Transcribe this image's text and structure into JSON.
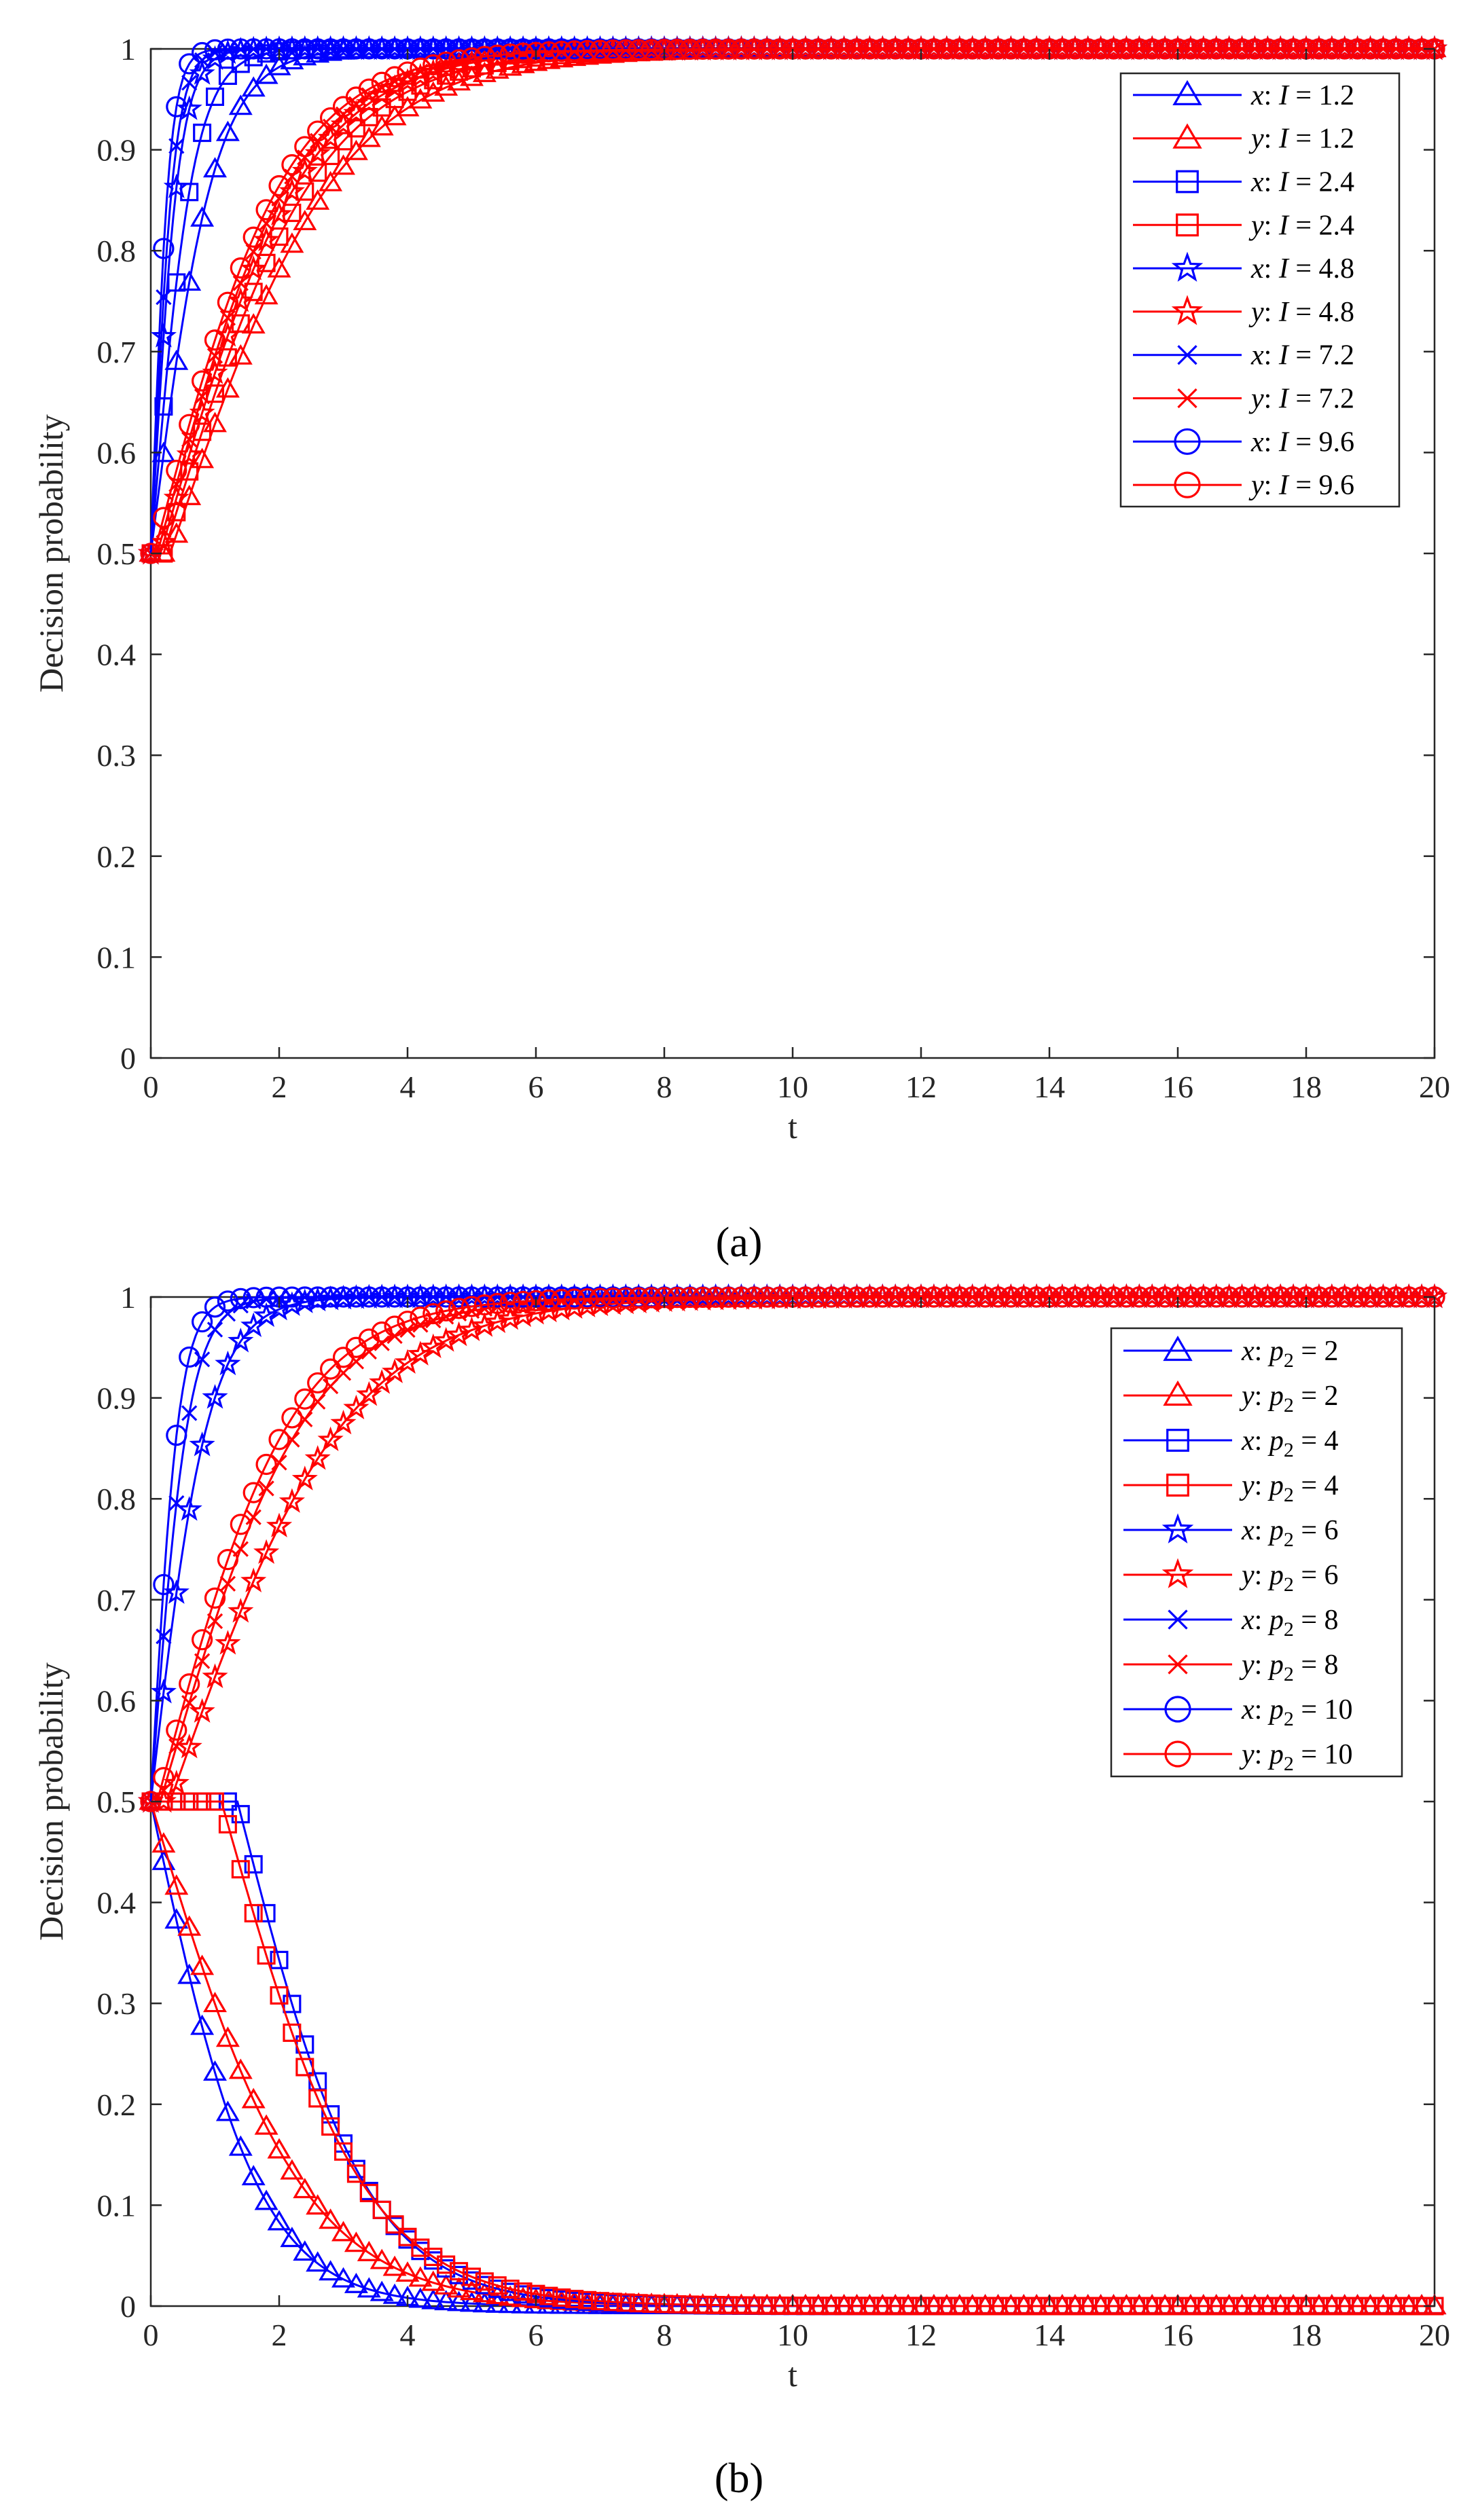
{
  "figure": {
    "panel_labels": [
      "(a)",
      "(b)"
    ]
  },
  "colors": {
    "x_series": "#0000ff",
    "y_series": "#ff0000",
    "axis": "#262626"
  },
  "chart_data": [
    {
      "type": "line",
      "panel": "(a)",
      "title": "",
      "xlabel": "t",
      "ylabel": "Decision probability",
      "xlim": [
        0,
        20
      ],
      "ylim": [
        0,
        1
      ],
      "xticks": [
        0,
        2,
        4,
        6,
        8,
        10,
        12,
        14,
        16,
        18,
        20
      ],
      "yticks": [
        0,
        0.1,
        0.2,
        0.3,
        0.4,
        0.5,
        0.6,
        0.7,
        0.8,
        0.9,
        1
      ],
      "legend_position": "top-right",
      "markers_every": 0.2,
      "series": [
        {
          "name": "x: I = 1.2",
          "var": "x",
          "param": "I",
          "value": "1.2",
          "color": "blue",
          "marker": "triangle",
          "x0": 0.5,
          "k": 2.0,
          "t_end": 20
        },
        {
          "name": "y: I = 1.2",
          "var": "y",
          "param": "I",
          "value": "1.2",
          "color": "red",
          "marker": "triangle",
          "x0": 0.5,
          "k": 0.75,
          "delay": 0.3,
          "t_end": 20
        },
        {
          "name": "x: I = 2.4",
          "var": "x",
          "param": "I",
          "value": "2.4",
          "color": "blue",
          "marker": "square",
          "x0": 0.5,
          "k": 3.0,
          "t_end": 20
        },
        {
          "name": "y: I = 2.4",
          "var": "y",
          "param": "I",
          "value": "2.4",
          "color": "red",
          "marker": "square",
          "x0": 0.5,
          "k": 0.82,
          "delay": 0.2,
          "t_end": 20
        },
        {
          "name": "x: I = 4.8",
          "var": "x",
          "param": "I",
          "value": "4.8",
          "color": "blue",
          "marker": "star",
          "x0": 0.5,
          "k": 4.6,
          "t_end": 20
        },
        {
          "name": "y: I = 4.8",
          "var": "y",
          "param": "I",
          "value": "4.8",
          "color": "red",
          "marker": "star",
          "x0": 0.5,
          "k": 0.88,
          "delay": 0.15,
          "t_end": 20
        },
        {
          "name": "x: I = 7.2",
          "var": "x",
          "param": "I",
          "value": "7.2",
          "color": "blue",
          "marker": "cross",
          "x0": 0.5,
          "k": 5.6,
          "t_end": 20
        },
        {
          "name": "y: I = 7.2",
          "var": "y",
          "param": "I",
          "value": "7.2",
          "color": "red",
          "marker": "cross",
          "x0": 0.5,
          "k": 0.92,
          "delay": 0.1,
          "t_end": 20
        },
        {
          "name": "x: I = 9.6",
          "var": "x",
          "param": "I",
          "value": "9.6",
          "color": "blue",
          "marker": "circle",
          "x0": 0.5,
          "k": 7.0,
          "t_end": 20
        },
        {
          "name": "y: I = 9.6",
          "var": "y",
          "param": "I",
          "value": "9.6",
          "color": "red",
          "marker": "circle",
          "x0": 0.5,
          "k": 0.95,
          "delay": 0.05,
          "t_end": 20
        }
      ]
    },
    {
      "type": "line",
      "panel": "(b)",
      "title": "",
      "xlabel": "t",
      "ylabel": "Decision probability",
      "xlim": [
        0,
        20
      ],
      "ylim": [
        0,
        1
      ],
      "xticks": [
        0,
        2,
        4,
        6,
        8,
        10,
        12,
        14,
        16,
        18,
        20
      ],
      "yticks": [
        0,
        0.1,
        0.2,
        0.3,
        0.4,
        0.5,
        0.6,
        0.7,
        0.8,
        0.9,
        1
      ],
      "legend_position": "top-right",
      "markers_every": 0.2,
      "series": [
        {
          "name": "x: p2 = 2",
          "var": "x",
          "param": "p",
          "sub": "2",
          "value": "2",
          "color": "blue",
          "marker": "triangle",
          "x0": 0.5,
          "k": -1.2,
          "t_end": 20
        },
        {
          "name": "y: p2 = 2",
          "var": "y",
          "param": "p",
          "sub": "2",
          "value": "2",
          "color": "red",
          "marker": "triangle",
          "x0": 0.5,
          "k": -0.85,
          "t_end": 20
        },
        {
          "name": "x: p2 = 4",
          "var": "x",
          "param": "p",
          "sub": "2",
          "value": "4",
          "color": "blue",
          "marker": "square",
          "x0": 0.5,
          "k": -1.0,
          "delay": 1.35,
          "t_end": 20
        },
        {
          "name": "y: p2 = 4",
          "var": "y",
          "param": "p",
          "sub": "2",
          "value": "4",
          "color": "red",
          "marker": "square",
          "x0": 0.5,
          "k": -0.9,
          "delay": 1.1,
          "t_end": 20
        },
        {
          "name": "x: p2 = 6",
          "var": "x",
          "param": "p",
          "sub": "2",
          "value": "6",
          "color": "blue",
          "marker": "star",
          "x0": 0.5,
          "k": 2.2,
          "t_end": 20
        },
        {
          "name": "y: p2 = 6",
          "var": "y",
          "param": "p",
          "sub": "2",
          "value": "6",
          "color": "red",
          "marker": "star",
          "x0": 0.5,
          "k": 0.72,
          "delay": 0.3,
          "t_end": 20
        },
        {
          "name": "x: p2 = 8",
          "var": "x",
          "param": "p",
          "sub": "2",
          "value": "8",
          "color": "blue",
          "marker": "cross",
          "x0": 0.5,
          "k": 3.4,
          "t_end": 20
        },
        {
          "name": "y: p2 = 8",
          "var": "y",
          "param": "p",
          "sub": "2",
          "value": "8",
          "color": "red",
          "marker": "cross",
          "x0": 0.5,
          "k": 0.88,
          "delay": 0.15,
          "t_end": 20
        },
        {
          "name": "x: p2 = 10",
          "var": "x",
          "param": "p",
          "sub": "2",
          "value": "10",
          "color": "blue",
          "marker": "circle",
          "x0": 0.5,
          "k": 4.6,
          "t_end": 20
        },
        {
          "name": "y: p2 = 10",
          "var": "y",
          "param": "p",
          "sub": "2",
          "value": "10",
          "color": "red",
          "marker": "circle",
          "x0": 0.5,
          "k": 0.95,
          "delay": 0.1,
          "t_end": 20
        }
      ]
    }
  ]
}
